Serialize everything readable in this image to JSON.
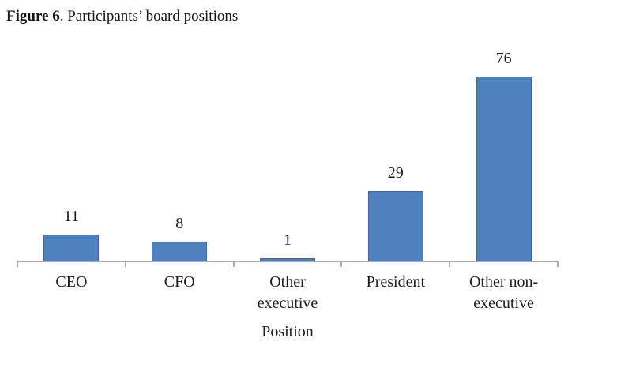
{
  "title": {
    "label": "Figure 6",
    "text": ". Participants’ board positions"
  },
  "chart_data": {
    "type": "bar",
    "title": "Figure 6. Participants’ board positions",
    "categories": [
      "CEO",
      "CFO",
      "Other executive",
      "President",
      "Other non-executive"
    ],
    "values": [
      11,
      8,
      1,
      29,
      76
    ],
    "data_labels": [
      "11",
      "8",
      "1",
      "29",
      "76"
    ],
    "category_label_lines": [
      [
        "CEO"
      ],
      [
        "CFO"
      ],
      [
        "Other",
        "executive"
      ],
      [
        "President"
      ],
      [
        "Other non-",
        "executive"
      ]
    ],
    "xlabel": "Position",
    "ylabel": "",
    "ylim": [
      0,
      80
    ],
    "grid": false,
    "legend": "none",
    "colors": {
      "bar_fill": "#4E81BD",
      "bar_border": "#3A67A3",
      "axis_line": "#ACACAC",
      "text": "#1C1C1C"
    }
  }
}
